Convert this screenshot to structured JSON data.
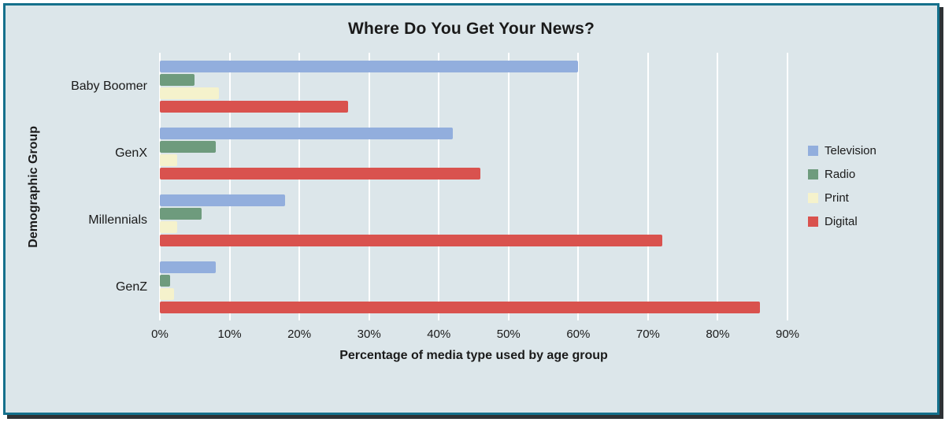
{
  "chart_data": {
    "type": "bar",
    "orientation": "horizontal",
    "title": "Where Do You Get Your News?",
    "xlabel": "Percentage of media type used by age group",
    "ylabel": "Demographic Group",
    "categories": [
      "Baby Boomer",
      "GenX",
      "Millennials",
      "GenZ"
    ],
    "series": [
      {
        "name": "Television",
        "color": "#92aedd",
        "values": [
          60,
          42,
          18,
          8
        ]
      },
      {
        "name": "Radio",
        "color": "#6e9b7d",
        "values": [
          5,
          8,
          6,
          1.5
        ]
      },
      {
        "name": "Print",
        "color": "#f5f2cc",
        "values": [
          8.5,
          2.5,
          2.5,
          2
        ]
      },
      {
        "name": "Digital",
        "color": "#d9524e",
        "values": [
          27,
          46,
          72,
          86
        ]
      }
    ],
    "xlim": [
      0,
      90
    ],
    "xticks": [
      "0%",
      "10%",
      "20%",
      "30%",
      "40%",
      "50%",
      "60%",
      "70%",
      "80%",
      "90%"
    ],
    "grid": true,
    "legend_position": "right"
  },
  "colors": {
    "background": "#dce6ea",
    "frame_border": "#15708c",
    "frame_shadow": "#2e3235",
    "gridline": "#ffffff",
    "text": "#1a1a1a"
  }
}
